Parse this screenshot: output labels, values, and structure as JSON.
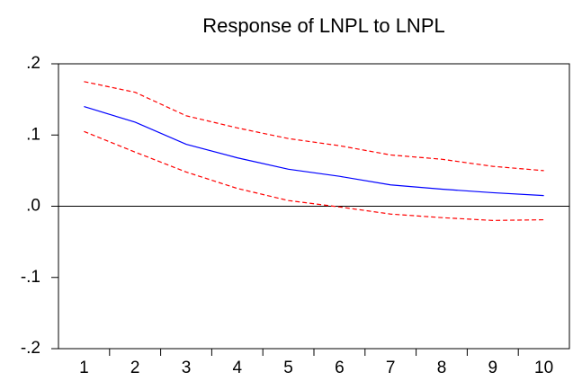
{
  "chart_data": {
    "type": "line",
    "title": "Response of LNPL to LNPL",
    "categories": [
      "1",
      "2",
      "3",
      "4",
      "5",
      "6",
      "7",
      "8",
      "9",
      "10"
    ],
    "series": [
      {
        "color": "#0000ff",
        "dashed": false,
        "values": [
          0.14,
          0.118,
          0.087,
          0.068,
          0.052,
          0.042,
          0.03,
          0.024,
          0.019,
          0.015
        ]
      },
      {
        "color": "#ff0000",
        "dashed": true,
        "values": [
          0.175,
          0.16,
          0.127,
          0.11,
          0.095,
          0.085,
          0.072,
          0.066,
          0.056,
          0.05
        ]
      },
      {
        "color": "#ff0000",
        "dashed": true,
        "values": [
          0.105,
          0.076,
          0.048,
          0.025,
          0.008,
          -0.001,
          -0.011,
          -0.016,
          -0.02,
          -0.019
        ]
      }
    ],
    "ylim": [
      -0.2,
      0.2
    ],
    "yticks": [
      {
        "value": -0.2,
        "label": "-.2"
      },
      {
        "value": -0.1,
        "label": "-.1"
      },
      {
        "value": 0,
        "label": ".0"
      },
      {
        "value": 0.1,
        "label": ".1"
      },
      {
        "value": 0.2,
        "label": ".2"
      }
    ],
    "zero_line": true
  }
}
